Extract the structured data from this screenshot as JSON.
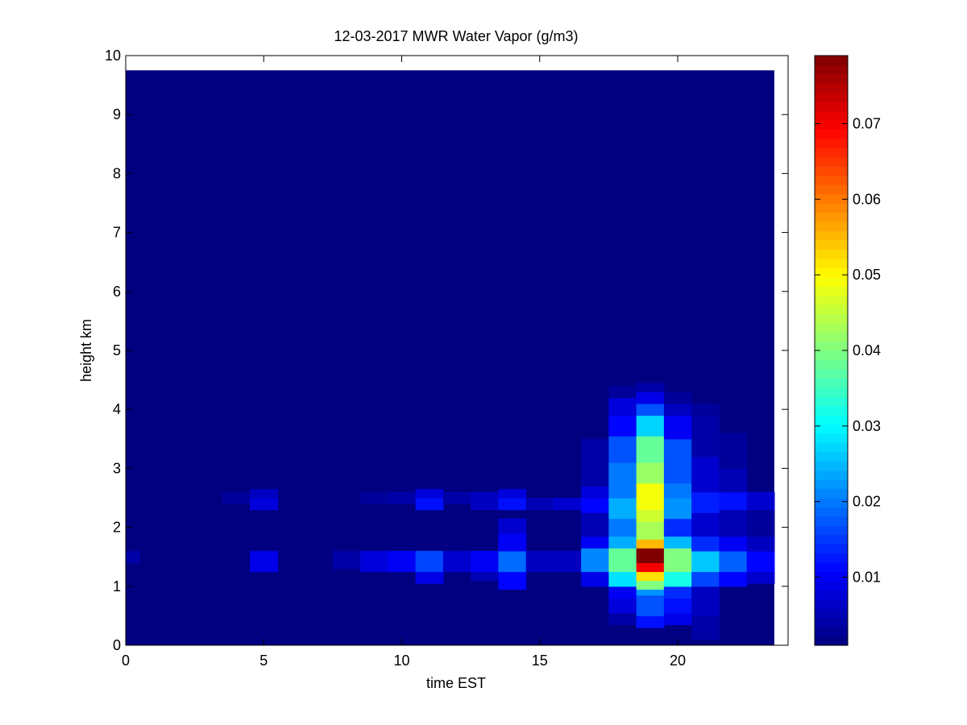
{
  "chart_data": {
    "type": "heatmap",
    "title": "12-03-2017 MWR Water Vapor (g/m3)",
    "xlabel": "time EST",
    "ylabel": "height km",
    "xlim": [
      0,
      24
    ],
    "ylim": [
      0,
      10
    ],
    "data_extent": {
      "x": [
        0,
        23.5
      ],
      "y": [
        0,
        9.75
      ]
    },
    "x_ticks": [
      0,
      5,
      10,
      15,
      20
    ],
    "y_ticks": [
      0,
      1,
      2,
      3,
      4,
      5,
      6,
      7,
      8,
      9,
      10
    ],
    "colormap": "jet",
    "colorbar": {
      "range": [
        0.001,
        0.079
      ],
      "ticks": [
        0.01,
        0.02,
        0.03,
        0.04,
        0.05,
        0.06,
        0.07
      ],
      "tick_labels": [
        "0.01",
        "0.02",
        "0.03",
        "0.04",
        "0.05",
        "0.06",
        "0.07"
      ]
    },
    "background_value": 0.001,
    "columns": [
      {
        "x0": 0,
        "x1": 0.5,
        "cells": [
          {
            "y0": 1.4,
            "y1": 1.6,
            "v": 0.004
          }
        ]
      },
      {
        "x0": 3.5,
        "x1": 4.5,
        "cells": [
          {
            "y0": 2.4,
            "y1": 2.6,
            "v": 0.003
          }
        ]
      },
      {
        "x0": 4.5,
        "x1": 5.5,
        "cells": [
          {
            "y0": 1.25,
            "y1": 1.6,
            "v": 0.009
          },
          {
            "y0": 2.3,
            "y1": 2.5,
            "v": 0.008
          },
          {
            "y0": 2.5,
            "y1": 2.65,
            "v": 0.006
          }
        ]
      },
      {
        "x0": 7.5,
        "x1": 8.5,
        "cells": [
          {
            "y0": 1.3,
            "y1": 1.6,
            "v": 0.004
          }
        ]
      },
      {
        "x0": 8.5,
        "x1": 9.5,
        "cells": [
          {
            "y0": 1.25,
            "y1": 1.6,
            "v": 0.008
          },
          {
            "y0": 2.4,
            "y1": 2.6,
            "v": 0.003
          }
        ]
      },
      {
        "x0": 9.5,
        "x1": 10.5,
        "cells": [
          {
            "y0": 1.25,
            "y1": 1.6,
            "v": 0.01
          },
          {
            "y0": 2.4,
            "y1": 2.6,
            "v": 0.004
          }
        ]
      },
      {
        "x0": 10.5,
        "x1": 11.5,
        "cells": [
          {
            "y0": 1.05,
            "y1": 1.25,
            "v": 0.009
          },
          {
            "y0": 1.25,
            "y1": 1.6,
            "v": 0.016
          },
          {
            "y0": 2.3,
            "y1": 2.5,
            "v": 0.012
          },
          {
            "y0": 2.5,
            "y1": 2.65,
            "v": 0.008
          }
        ]
      },
      {
        "x0": 11.5,
        "x1": 12.5,
        "cells": [
          {
            "y0": 1.25,
            "y1": 1.6,
            "v": 0.007
          },
          {
            "y0": 2.4,
            "y1": 2.6,
            "v": 0.004
          }
        ]
      },
      {
        "x0": 12.5,
        "x1": 13.5,
        "cells": [
          {
            "y0": 1.1,
            "y1": 1.25,
            "v": 0.005
          },
          {
            "y0": 1.25,
            "y1": 1.6,
            "v": 0.01
          },
          {
            "y0": 2.3,
            "y1": 2.6,
            "v": 0.006
          }
        ]
      },
      {
        "x0": 13.5,
        "x1": 14.5,
        "cells": [
          {
            "y0": 0.95,
            "y1": 1.25,
            "v": 0.011
          },
          {
            "y0": 1.25,
            "y1": 1.6,
            "v": 0.019
          },
          {
            "y0": 1.6,
            "y1": 1.9,
            "v": 0.01
          },
          {
            "y0": 1.9,
            "y1": 2.15,
            "v": 0.007
          },
          {
            "y0": 2.3,
            "y1": 2.5,
            "v": 0.012
          },
          {
            "y0": 2.5,
            "y1": 2.65,
            "v": 0.008
          }
        ]
      },
      {
        "x0": 14.5,
        "x1": 15.5,
        "cells": [
          {
            "y0": 1.25,
            "y1": 1.6,
            "v": 0.006
          },
          {
            "y0": 2.3,
            "y1": 2.5,
            "v": 0.005
          }
        ]
      },
      {
        "x0": 15.5,
        "x1": 16.5,
        "cells": [
          {
            "y0": 1.25,
            "y1": 1.6,
            "v": 0.006
          },
          {
            "y0": 2.3,
            "y1": 2.5,
            "v": 0.007
          }
        ]
      },
      {
        "x0": 16.5,
        "x1": 17.5,
        "cells": [
          {
            "y0": 1.0,
            "y1": 1.25,
            "v": 0.009
          },
          {
            "y0": 1.25,
            "y1": 1.65,
            "v": 0.021
          },
          {
            "y0": 1.65,
            "y1": 1.85,
            "v": 0.01
          },
          {
            "y0": 1.85,
            "y1": 2.25,
            "v": 0.005
          },
          {
            "y0": 2.25,
            "y1": 2.5,
            "v": 0.011
          },
          {
            "y0": 2.5,
            "y1": 2.7,
            "v": 0.008
          },
          {
            "y0": 2.7,
            "y1": 3.5,
            "v": 0.004
          }
        ]
      },
      {
        "x0": 17.5,
        "x1": 18.5,
        "cells": [
          {
            "y0": 0.35,
            "y1": 0.55,
            "v": 0.004
          },
          {
            "y0": 0.55,
            "y1": 0.8,
            "v": 0.008
          },
          {
            "y0": 0.8,
            "y1": 1.0,
            "v": 0.01
          },
          {
            "y0": 1.0,
            "y1": 1.25,
            "v": 0.028
          },
          {
            "y0": 1.25,
            "y1": 1.65,
            "v": 0.038
          },
          {
            "y0": 1.65,
            "y1": 1.85,
            "v": 0.024
          },
          {
            "y0": 1.85,
            "y1": 2.15,
            "v": 0.02
          },
          {
            "y0": 2.15,
            "y1": 2.5,
            "v": 0.024
          },
          {
            "y0": 2.5,
            "y1": 2.75,
            "v": 0.02
          },
          {
            "y0": 2.75,
            "y1": 3.1,
            "v": 0.02
          },
          {
            "y0": 3.1,
            "y1": 3.55,
            "v": 0.017
          },
          {
            "y0": 3.55,
            "y1": 3.9,
            "v": 0.011
          },
          {
            "y0": 3.9,
            "y1": 4.2,
            "v": 0.008
          },
          {
            "y0": 4.2,
            "y1": 4.4,
            "v": 0.003
          }
        ]
      },
      {
        "x0": 18.5,
        "x1": 19.5,
        "cells": [
          {
            "y0": 0.3,
            "y1": 0.5,
            "v": 0.012
          },
          {
            "y0": 0.5,
            "y1": 0.85,
            "v": 0.017
          },
          {
            "y0": 0.85,
            "y1": 0.95,
            "v": 0.022
          },
          {
            "y0": 0.95,
            "y1": 1.1,
            "v": 0.04
          },
          {
            "y0": 1.1,
            "y1": 1.25,
            "v": 0.052
          },
          {
            "y0": 1.25,
            "y1": 1.4,
            "v": 0.07
          },
          {
            "y0": 1.4,
            "y1": 1.65,
            "v": 0.079
          },
          {
            "y0": 1.65,
            "y1": 1.8,
            "v": 0.055
          },
          {
            "y0": 1.8,
            "y1": 2.1,
            "v": 0.043
          },
          {
            "y0": 2.1,
            "y1": 2.3,
            "v": 0.046
          },
          {
            "y0": 2.3,
            "y1": 2.75,
            "v": 0.049
          },
          {
            "y0": 2.75,
            "y1": 3.1,
            "v": 0.042
          },
          {
            "y0": 3.1,
            "y1": 3.55,
            "v": 0.038
          },
          {
            "y0": 3.55,
            "y1": 3.9,
            "v": 0.027
          },
          {
            "y0": 3.9,
            "y1": 4.1,
            "v": 0.017
          },
          {
            "y0": 4.1,
            "y1": 4.3,
            "v": 0.009
          },
          {
            "y0": 4.3,
            "y1": 4.45,
            "v": 0.004
          }
        ]
      },
      {
        "x0": 19.5,
        "x1": 20.5,
        "cells": [
          {
            "y0": 0.35,
            "y1": 0.55,
            "v": 0.009
          },
          {
            "y0": 0.55,
            "y1": 0.8,
            "v": 0.012
          },
          {
            "y0": 0.8,
            "y1": 1.0,
            "v": 0.014
          },
          {
            "y0": 1.0,
            "y1": 1.25,
            "v": 0.032
          },
          {
            "y0": 1.25,
            "y1": 1.65,
            "v": 0.04
          },
          {
            "y0": 1.65,
            "y1": 1.85,
            "v": 0.025
          },
          {
            "y0": 1.85,
            "y1": 2.15,
            "v": 0.014
          },
          {
            "y0": 2.15,
            "y1": 2.5,
            "v": 0.022
          },
          {
            "y0": 2.5,
            "y1": 2.75,
            "v": 0.02
          },
          {
            "y0": 2.75,
            "y1": 3.5,
            "v": 0.017
          },
          {
            "y0": 3.5,
            "y1": 3.9,
            "v": 0.01
          },
          {
            "y0": 3.9,
            "y1": 4.1,
            "v": 0.006
          },
          {
            "y0": 4.1,
            "y1": 4.3,
            "v": 0.003
          }
        ]
      },
      {
        "x0": 20.5,
        "x1": 21.5,
        "cells": [
          {
            "y0": 0.1,
            "y1": 0.5,
            "v": 0.004
          },
          {
            "y0": 0.5,
            "y1": 1.0,
            "v": 0.006
          },
          {
            "y0": 1.0,
            "y1": 1.25,
            "v": 0.016
          },
          {
            "y0": 1.25,
            "y1": 1.6,
            "v": 0.026
          },
          {
            "y0": 1.6,
            "y1": 1.85,
            "v": 0.014
          },
          {
            "y0": 1.85,
            "y1": 2.25,
            "v": 0.007
          },
          {
            "y0": 2.25,
            "y1": 2.6,
            "v": 0.013
          },
          {
            "y0": 2.6,
            "y1": 3.2,
            "v": 0.007
          },
          {
            "y0": 3.2,
            "y1": 3.9,
            "v": 0.004
          },
          {
            "y0": 3.9,
            "y1": 4.1,
            "v": 0.003
          }
        ]
      },
      {
        "x0": 21.5,
        "x1": 22.5,
        "cells": [
          {
            "y0": 1.0,
            "y1": 1.25,
            "v": 0.011
          },
          {
            "y0": 1.25,
            "y1": 1.6,
            "v": 0.018
          },
          {
            "y0": 1.6,
            "y1": 1.85,
            "v": 0.01
          },
          {
            "y0": 1.85,
            "y1": 2.3,
            "v": 0.005
          },
          {
            "y0": 2.3,
            "y1": 2.6,
            "v": 0.012
          },
          {
            "y0": 2.6,
            "y1": 3.0,
            "v": 0.005
          },
          {
            "y0": 3.0,
            "y1": 3.6,
            "v": 0.003
          }
        ]
      },
      {
        "x0": 22.5,
        "x1": 23.5,
        "cells": [
          {
            "y0": 1.05,
            "y1": 1.25,
            "v": 0.007
          },
          {
            "y0": 1.25,
            "y1": 1.6,
            "v": 0.011
          },
          {
            "y0": 1.6,
            "y1": 1.85,
            "v": 0.006
          },
          {
            "y0": 1.85,
            "y1": 2.3,
            "v": 0.003
          },
          {
            "y0": 2.3,
            "y1": 2.6,
            "v": 0.007
          }
        ]
      }
    ]
  }
}
